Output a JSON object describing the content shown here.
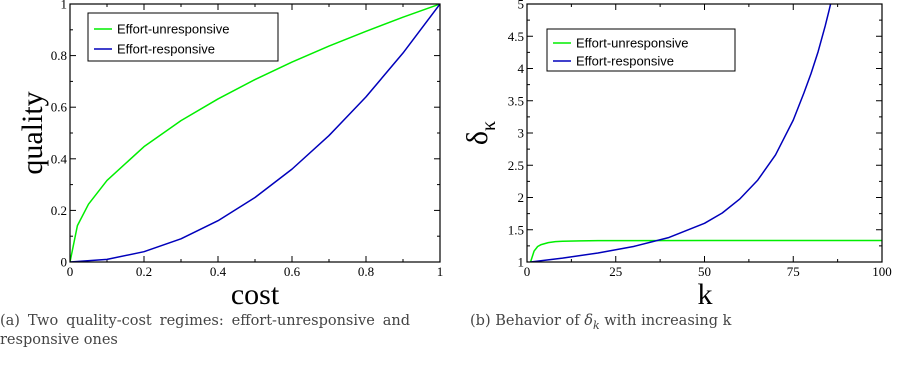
{
  "chart_data": [
    {
      "type": "line",
      "title": "",
      "xlabel": "cost",
      "ylabel": "quality",
      "xlim": [
        0,
        1
      ],
      "ylim": [
        0,
        1
      ],
      "xticks": [
        "0",
        "0.2",
        "0.4",
        "0.6",
        "0.8",
        "1"
      ],
      "yticks": [
        "0",
        "0.2",
        "0.4",
        "0.6",
        "0.8",
        "1"
      ],
      "legend_position": "top-left",
      "grid": false,
      "series": [
        {
          "name": "Effort-unresponsive",
          "color": "#00ee00",
          "x": [
            0,
            0.02,
            0.05,
            0.1,
            0.2,
            0.3,
            0.4,
            0.5,
            0.6,
            0.7,
            0.8,
            0.9,
            1.0
          ],
          "y": [
            0,
            0.141,
            0.224,
            0.316,
            0.447,
            0.548,
            0.632,
            0.707,
            0.775,
            0.837,
            0.894,
            0.949,
            1.0
          ]
        },
        {
          "name": "Effort-responsive",
          "color": "#0000bb",
          "x": [
            0,
            0.1,
            0.2,
            0.3,
            0.4,
            0.5,
            0.6,
            0.7,
            0.8,
            0.9,
            1.0
          ],
          "y": [
            0,
            0.01,
            0.04,
            0.09,
            0.16,
            0.25,
            0.36,
            0.49,
            0.64,
            0.81,
            1.0
          ]
        }
      ],
      "caption": "(a) Two quality-cost regimes: effort-unresponsive and responsive ones"
    },
    {
      "type": "line",
      "title": "",
      "xlabel": "k",
      "ylabel": "δκ",
      "xlim": [
        0,
        100
      ],
      "ylim": [
        1,
        5
      ],
      "xticks": [
        "0",
        "25",
        "50",
        "75",
        "100"
      ],
      "yticks": [
        "1",
        "1.5",
        "2",
        "2.5",
        "3",
        "3.5",
        "4",
        "4.5",
        "5"
      ],
      "legend_position": "top-left",
      "grid": false,
      "series": [
        {
          "name": "Effort-unresponsive",
          "color": "#00ee00",
          "x": [
            1,
            2,
            3,
            4,
            6,
            8,
            10,
            15,
            20,
            30,
            50,
            75,
            100
          ],
          "y": [
            1.0,
            1.17,
            1.24,
            1.27,
            1.3,
            1.315,
            1.322,
            1.328,
            1.331,
            1.332,
            1.333,
            1.333,
            1.333
          ]
        },
        {
          "name": "Effort-responsive",
          "color": "#0000bb",
          "x": [
            1,
            10,
            20,
            30,
            40,
            50,
            55,
            60,
            65,
            70,
            75,
            78,
            80,
            82,
            84,
            85,
            86,
            87
          ],
          "y": [
            1.0,
            1.06,
            1.14,
            1.24,
            1.38,
            1.6,
            1.76,
            1.98,
            2.27,
            2.66,
            3.2,
            3.62,
            3.92,
            4.26,
            4.66,
            4.88,
            5.11,
            5.35
          ]
        }
      ],
      "caption_prefix": "(b) Behavior of ",
      "caption_symbol": "δ",
      "caption_sub": "k",
      "caption_suffix": " with increasing k"
    }
  ]
}
